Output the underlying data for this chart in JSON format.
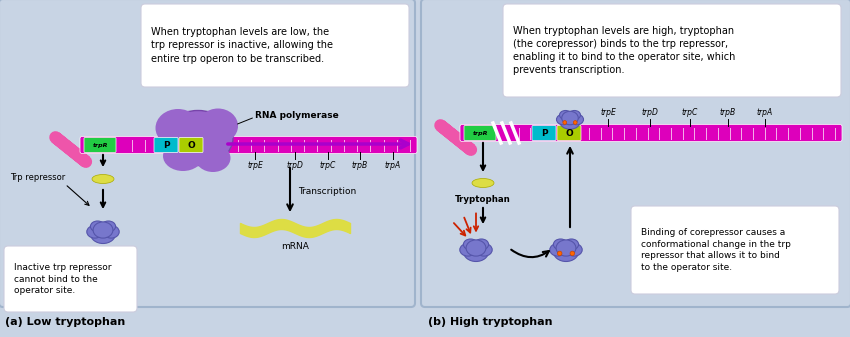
{
  "fig_width": 8.5,
  "fig_height": 3.37,
  "dpi": 100,
  "bg_color": "#c8d4e4",
  "panel_a_label": "(a) Low tryptophan",
  "panel_b_label": "(b) High tryptophan",
  "panel_a_title": "When tryptophan levels are low, the\ntrp repressor is inactive, allowing the\nentire trp operon to be transcribed.",
  "panel_b_title": "When tryptophan levels are high, tryptophan\n(the corepressor) binds to the trp repressor,\nenabling it to bind to the operator site, which\nprevents transcription.",
  "panel_a_box_text": "Inactive trp repressor\ncannot bind to the\noperator site.",
  "panel_b_box_text": "Binding of corepressor causes a\nconformational change in the trp\nrepressor that allows it to bind\nto the operator site.",
  "rna_poly_label": "RNA polymerase",
  "transcription_label": "Transcription",
  "mrna_label": "mRNA",
  "trp_repressor_label": "Trp repressor",
  "tryptophan_label": "Tryptophan",
  "gene_labels": [
    "trpE",
    "trpD",
    "trpC",
    "trpB",
    "trpA"
  ],
  "trpR_label": "trpR",
  "P_label": "P",
  "O_label": "O",
  "dna_color": "#dd00bb",
  "trpR_box_color": "#22cc44",
  "P_box_color": "#00bbcc",
  "O_box_color": "#aacc00",
  "rna_poly_color": "#9966cc",
  "arrow_color": "#aa00cc",
  "mrna_color": "#dddd44",
  "repressor_color": "#7777cc",
  "small_molecule_color": "#dddd44",
  "orange_dot_color": "#ff6600",
  "red_arrow_color": "#cc2200"
}
